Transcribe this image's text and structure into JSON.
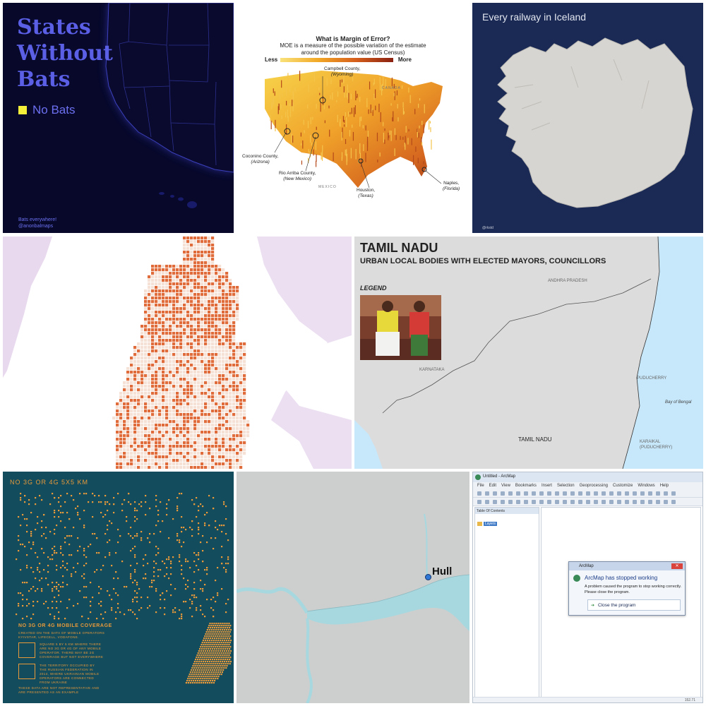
{
  "tile_states_without_bats": {
    "title_lines": [
      "States",
      "Without",
      "Bats"
    ],
    "legend_label": "No Bats",
    "legend_color": "#f5ef3a",
    "credit_lines": [
      "Bats everywhere!",
      "@anonbalmaps"
    ]
  },
  "tile_margin_of_error": {
    "title": "What is Margin of Error?",
    "subtitle": "MOE is a measure of the possible variation of the estimate around the population value (US Census)",
    "legend_less": "Less",
    "legend_more": "More",
    "callouts": [
      {
        "name": "Campbell County,",
        "state": "(Wyoming)"
      },
      {
        "name": "Coconino County,",
        "state": "(Arizona)"
      },
      {
        "name": "Rio Arriba County,",
        "state": "(New Mexico)"
      },
      {
        "name": "Houston,",
        "state": "(Texas)"
      },
      {
        "name": "Naples,",
        "state": "(Florida)"
      }
    ],
    "country_labels": [
      "CANADA",
      "MEXICO"
    ]
  },
  "tile_iceland": {
    "title": "Every railway in Iceland",
    "credit": "@rkstd"
  },
  "tile_tamil_nadu": {
    "title": "TAMIL NADU",
    "subtitle": "URBAN LOCAL BODIES WITH ELECTED MAYORS, COUNCILLORS",
    "legend_heading": "LEGEND",
    "places": {
      "andhra": "ANDHRA PRADESH",
      "karnataka": "KARNATAKA",
      "puducherry": "PUDUCHERRY",
      "bay": "Bay of Bengal",
      "tamil_nadu": "TAMIL NADU",
      "karaikal_1": "KARAIKAL",
      "karaikal_2": "(PUDUCHERRY)"
    }
  },
  "tile_no_coverage": {
    "title": "NO 3G OR 4G 5X5 KM",
    "heading": "NO 3G OR 4G MOBILE COVERAGE",
    "source_lines": [
      "CREATED ON THE DATA OF MOBILE OPERATORS",
      "KYIVSTAR, LIFECELL, VODAFONE."
    ],
    "legend_1_lines": [
      "SQUARE 5 BY 5 KM WHERE THERE",
      "ARE NO 3G OR 4G OF ANY MOBILE",
      "OPERATOR. THERE MAY BE 2G",
      "COVERAGE BUT NOT EVERYWHERE"
    ],
    "legend_2_lines": [
      "THE TERRITORY OCCUPIED BY",
      "THE RUSSIAN FEDERATION IN",
      "2014, WHERE UKRAINIAN MOBILE",
      "OPERATORS ARE CONNECTED",
      "FROM UKRAINE"
    ],
    "footnote_lines": [
      "THESE DATA ARE NOT REPRESENTATIVE AND",
      "ARE PRESENTED AS AN EXAMPLE"
    ],
    "accent_color": "#e89a3a"
  },
  "tile_hull": {
    "place_label": "Hull",
    "water_color": "#a7d8df"
  },
  "tile_arcmap": {
    "window_title": "Untitled - ArcMap",
    "menu": [
      "File",
      "Edit",
      "View",
      "Bookmarks",
      "Insert",
      "Selection",
      "Geoprocessing",
      "Customize",
      "Windows",
      "Help"
    ],
    "toc_title": "Table Of Contents",
    "toc_layer": "Layers",
    "dialog": {
      "title": "ArcMap",
      "close_glyph": "✕",
      "heading": "ArcMap has stopped working",
      "message": "A problem caused the program to stop working correctly. Please close the program.",
      "button_label": "Close the program"
    },
    "status": "152.71"
  }
}
